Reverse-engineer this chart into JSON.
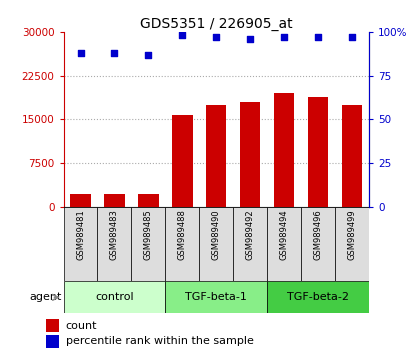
{
  "title": "GDS5351 / 226905_at",
  "samples": [
    "GSM989481",
    "GSM989483",
    "GSM989485",
    "GSM989488",
    "GSM989490",
    "GSM989492",
    "GSM989494",
    "GSM989496",
    "GSM989499"
  ],
  "counts": [
    2200,
    2200,
    2300,
    15800,
    17500,
    18000,
    19500,
    18800,
    17500
  ],
  "percentile_ranks": [
    88,
    88,
    87,
    98,
    97,
    96,
    97,
    97,
    97
  ],
  "groups": [
    {
      "label": "control",
      "indices": [
        0,
        1,
        2
      ],
      "color": "#ccffcc"
    },
    {
      "label": "TGF-beta-1",
      "indices": [
        3,
        4,
        5
      ],
      "color": "#88ee88"
    },
    {
      "label": "TGF-beta-2",
      "indices": [
        6,
        7,
        8
      ],
      "color": "#44cc44"
    }
  ],
  "bar_color": "#cc0000",
  "dot_color": "#0000cc",
  "left_axis_color": "#cc0000",
  "right_axis_color": "#0000cc",
  "ylim_left": [
    0,
    30000
  ],
  "ylim_right": [
    0,
    100
  ],
  "yticks_left": [
    0,
    7500,
    15000,
    22500,
    30000
  ],
  "ytick_labels_left": [
    "0",
    "7500",
    "15000",
    "22500",
    "30000"
  ],
  "yticks_right": [
    0,
    25,
    50,
    75,
    100
  ],
  "ytick_labels_right": [
    "0",
    "25",
    "50",
    "75",
    "100%"
  ],
  "grid_color": "#aaaaaa",
  "background_color": "#ffffff",
  "sample_box_color": "#dddddd",
  "bar_width": 0.6,
  "agent_label": "agent",
  "legend_count_label": "count",
  "legend_pct_label": "percentile rank within the sample"
}
